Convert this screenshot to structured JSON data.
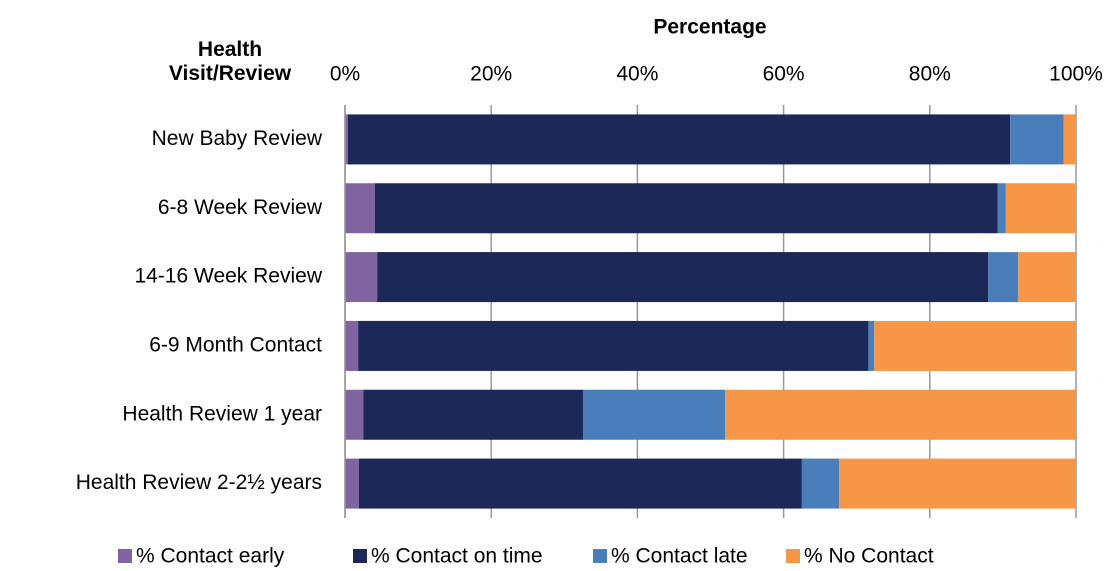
{
  "chart_data": {
    "type": "stacked_barh",
    "title": "Percentage",
    "y_label": "Health Visit/Review",
    "categories": [
      "New Baby Review",
      "6-8 Week Review",
      "14-16 Week Review",
      "6-9 Month Contact",
      "Health Review 1 year",
      "Health Review 2-2½ years"
    ],
    "series": [
      {
        "name": "% Contact early",
        "color": "#8064a2",
        "values": [
          0.4,
          4.1,
          4.4,
          1.8,
          2.5,
          1.9
        ]
      },
      {
        "name": "% Contact on time",
        "color": "#1c2857",
        "values": [
          90.6,
          85.2,
          83.6,
          69.8,
          30.1,
          60.6
        ]
      },
      {
        "name": "% Contact late",
        "color": "#4a7ebb",
        "values": [
          7.3,
          1.1,
          4.1,
          0.8,
          19.4,
          5.1
        ]
      },
      {
        "name": "% No Contact",
        "color": "#f79646",
        "values": [
          1.7,
          9.6,
          7.9,
          27.6,
          48.0,
          32.4
        ]
      }
    ],
    "xlim": [
      0,
      100
    ],
    "xticks": [
      {
        "value": 0,
        "label": "0%"
      },
      {
        "value": 20,
        "label": "20%"
      },
      {
        "value": 40,
        "label": "40%"
      },
      {
        "value": 60,
        "label": "60%"
      },
      {
        "value": 80,
        "label": "80%"
      },
      {
        "value": 100,
        "label": "100%"
      }
    ],
    "grid": true,
    "legend": "bottom"
  }
}
